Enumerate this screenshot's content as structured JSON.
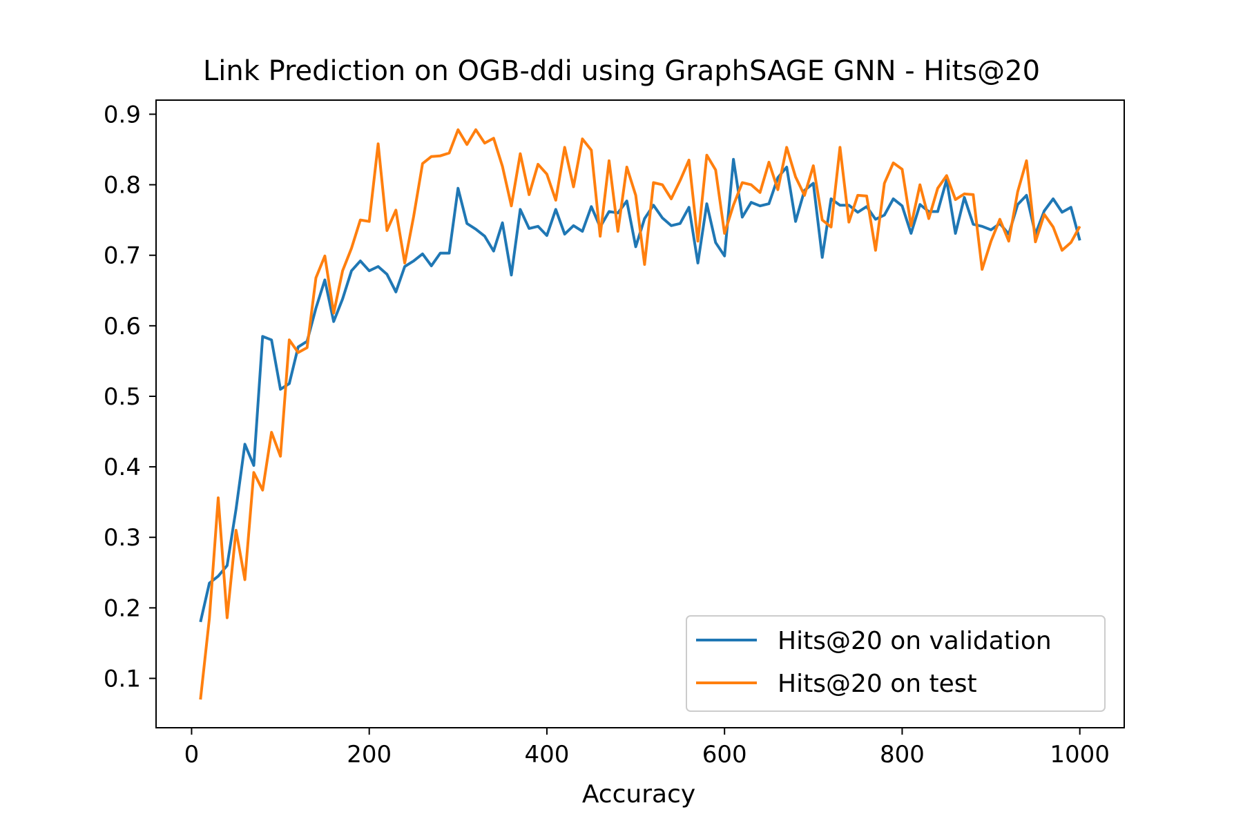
{
  "chart_data": {
    "type": "line",
    "title": "Link Prediction on OGB-ddi using GraphSAGE GNN - Hits@20",
    "xlabel": "Accuracy",
    "ylabel": "",
    "xlim": [
      -40,
      1050
    ],
    "ylim": [
      0.03,
      0.92
    ],
    "xticks": [
      0,
      200,
      400,
      600,
      800,
      1000
    ],
    "yticks": [
      0.1,
      0.2,
      0.3,
      0.4,
      0.5,
      0.6,
      0.7,
      0.8,
      0.9
    ],
    "grid": false,
    "legend_position": "lower-right",
    "x": [
      10,
      20,
      30,
      40,
      50,
      60,
      70,
      80,
      90,
      100,
      110,
      120,
      130,
      140,
      150,
      160,
      170,
      180,
      190,
      200,
      210,
      220,
      230,
      240,
      250,
      260,
      270,
      280,
      290,
      300,
      310,
      320,
      330,
      340,
      350,
      360,
      370,
      380,
      390,
      400,
      410,
      420,
      430,
      440,
      450,
      460,
      470,
      480,
      490,
      500,
      510,
      520,
      530,
      540,
      550,
      560,
      570,
      580,
      590,
      600,
      610,
      620,
      630,
      640,
      650,
      660,
      670,
      680,
      690,
      700,
      710,
      720,
      730,
      740,
      750,
      760,
      770,
      780,
      790,
      800,
      810,
      820,
      830,
      840,
      850,
      860,
      870,
      880,
      890,
      900,
      910,
      920,
      930,
      940,
      950,
      960,
      970,
      980,
      990,
      1000
    ],
    "series": [
      {
        "name": "Hits@20 on validation",
        "color": "#1f77b4",
        "values": [
          0.18,
          0.235,
          0.245,
          0.26,
          0.34,
          0.432,
          0.402,
          0.585,
          0.58,
          0.51,
          0.518,
          0.57,
          0.578,
          0.625,
          0.665,
          0.606,
          0.638,
          0.678,
          0.692,
          0.678,
          0.684,
          0.673,
          0.648,
          0.684,
          0.692,
          0.702,
          0.685,
          0.703,
          0.703,
          0.795,
          0.745,
          0.737,
          0.727,
          0.706,
          0.746,
          0.672,
          0.765,
          0.738,
          0.741,
          0.728,
          0.765,
          0.73,
          0.742,
          0.734,
          0.769,
          0.74,
          0.762,
          0.76,
          0.777,
          0.712,
          0.752,
          0.771,
          0.753,
          0.742,
          0.745,
          0.768,
          0.689,
          0.773,
          0.718,
          0.699,
          0.836,
          0.754,
          0.775,
          0.77,
          0.773,
          0.81,
          0.825,
          0.748,
          0.792,
          0.802,
          0.697,
          0.78,
          0.771,
          0.771,
          0.761,
          0.769,
          0.751,
          0.757,
          0.78,
          0.77,
          0.731,
          0.772,
          0.762,
          0.762,
          0.807,
          0.731,
          0.782,
          0.744,
          0.741,
          0.736,
          0.745,
          0.73,
          0.772,
          0.785,
          0.73,
          0.763,
          0.78,
          0.761,
          0.768,
          0.721
        ]
      },
      {
        "name": "Hits@20 on test",
        "color": "#ff7f0e",
        "values": [
          0.07,
          0.185,
          0.356,
          0.186,
          0.31,
          0.24,
          0.392,
          0.367,
          0.449,
          0.415,
          0.58,
          0.562,
          0.569,
          0.668,
          0.699,
          0.618,
          0.678,
          0.71,
          0.75,
          0.748,
          0.858,
          0.735,
          0.764,
          0.689,
          0.755,
          0.83,
          0.84,
          0.841,
          0.845,
          0.878,
          0.857,
          0.878,
          0.859,
          0.866,
          0.826,
          0.77,
          0.844,
          0.786,
          0.829,
          0.815,
          0.778,
          0.853,
          0.797,
          0.865,
          0.849,
          0.727,
          0.834,
          0.734,
          0.825,
          0.785,
          0.687,
          0.803,
          0.8,
          0.78,
          0.806,
          0.835,
          0.72,
          0.842,
          0.821,
          0.731,
          0.771,
          0.803,
          0.8,
          0.789,
          0.832,
          0.793,
          0.853,
          0.811,
          0.785,
          0.827,
          0.75,
          0.74,
          0.853,
          0.747,
          0.785,
          0.784,
          0.707,
          0.802,
          0.831,
          0.822,
          0.742,
          0.8,
          0.752,
          0.795,
          0.813,
          0.779,
          0.787,
          0.786,
          0.68,
          0.72,
          0.751,
          0.72,
          0.79,
          0.834,
          0.719,
          0.758,
          0.74,
          0.707,
          0.718,
          0.741
        ]
      }
    ]
  }
}
